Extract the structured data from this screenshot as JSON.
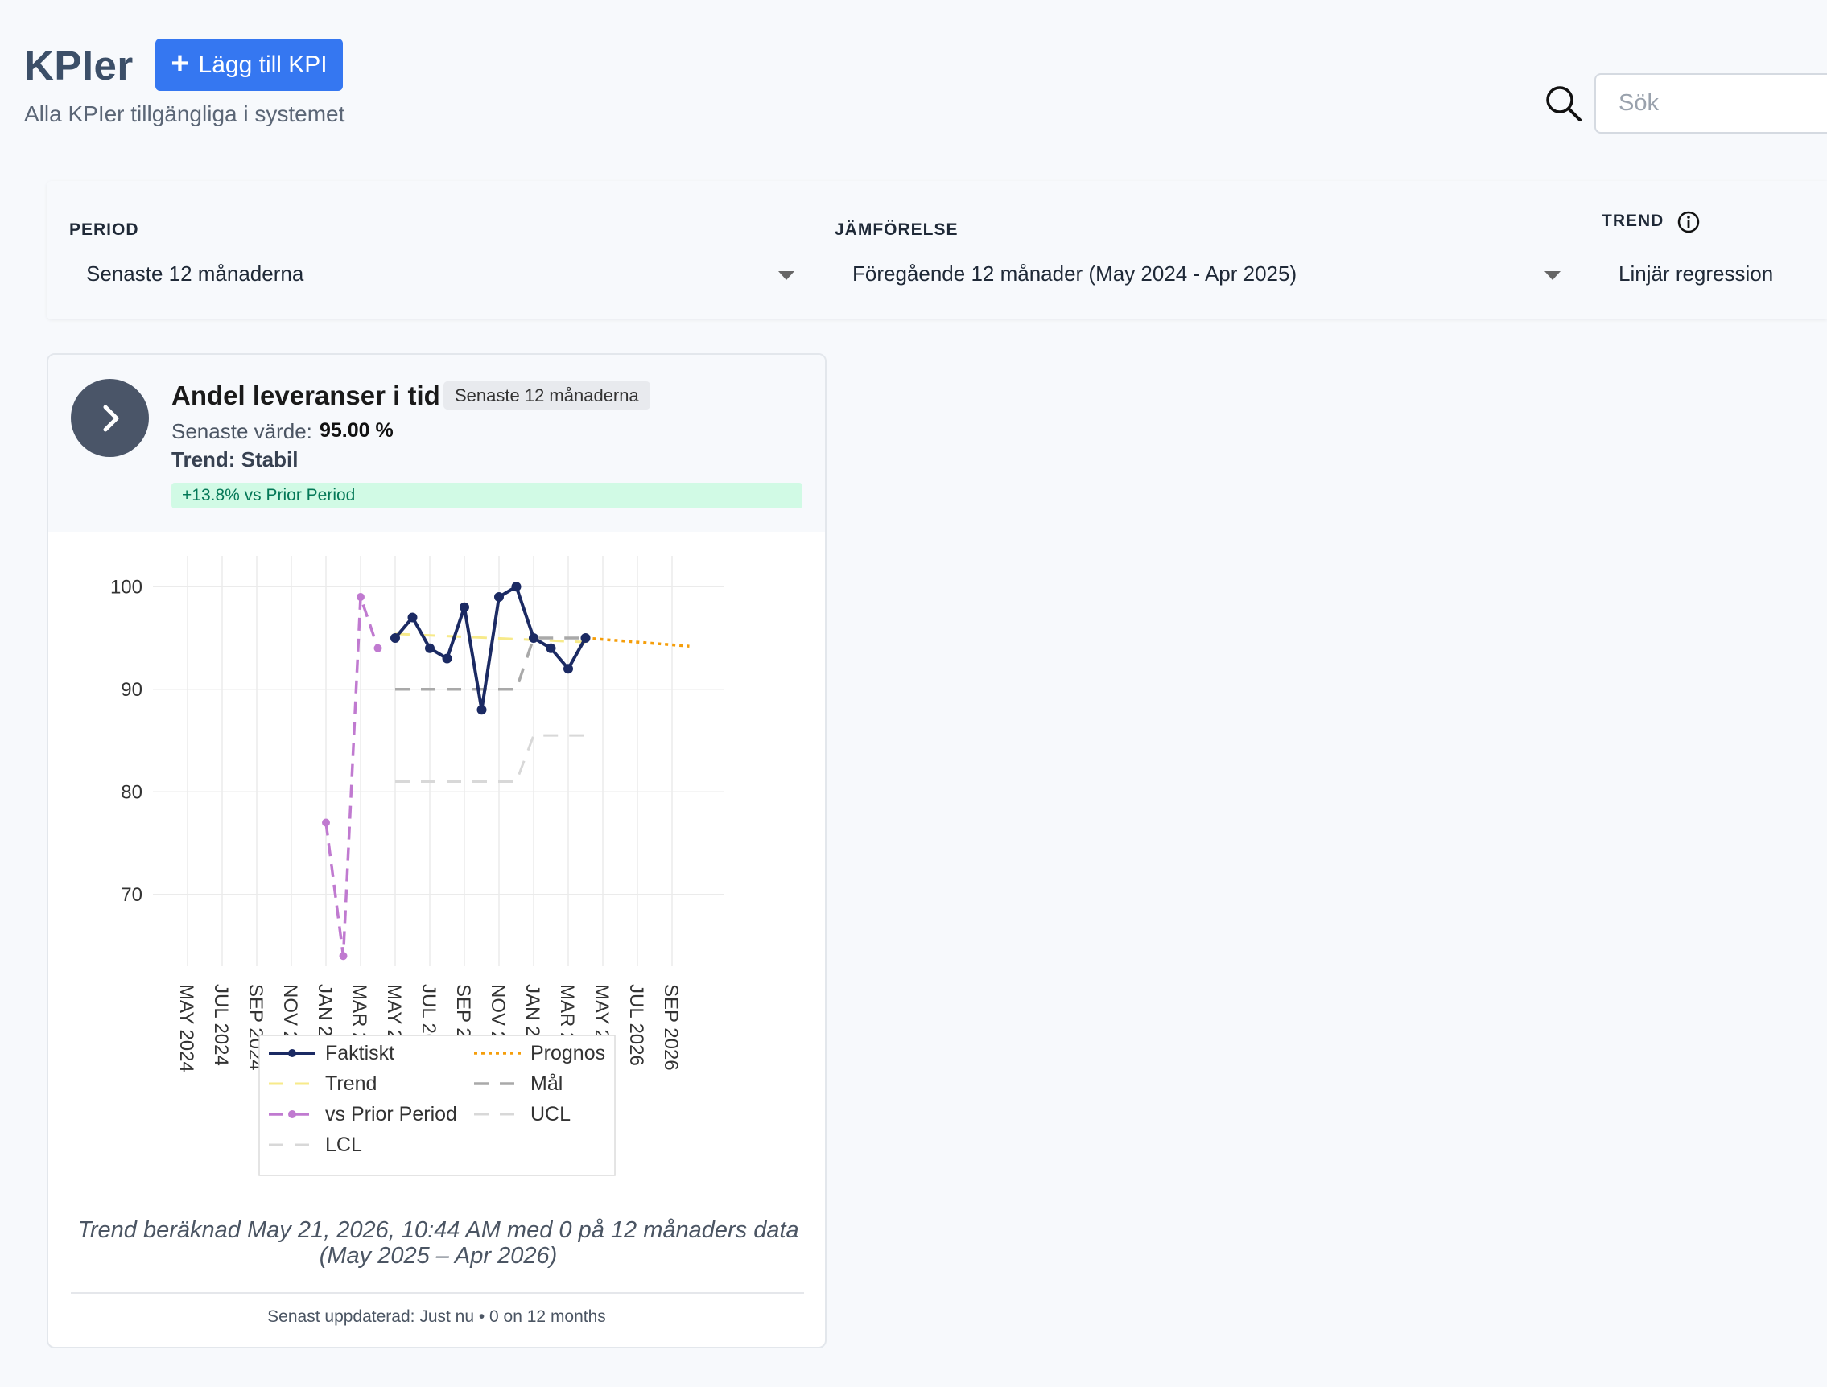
{
  "header": {
    "title": "KPIer",
    "add_button_label": "Lägg till KPI",
    "subtitle": "Alla KPIer tillgängliga i systemet",
    "search_placeholder": "Sök"
  },
  "filters": {
    "period": {
      "label": "PERIOD",
      "value": "Senaste 12 månaderna"
    },
    "comparison": {
      "label": "JÄMFÖRELSE",
      "value": "Föregående 12 månader (May 2024 - Apr 2025)"
    },
    "trend": {
      "label": "TREND",
      "value": "Linjär regression"
    }
  },
  "card": {
    "title": "Andel leveranser i tid",
    "badge": "Senaste 12 månaderna",
    "latest_label": "Senaste värde:",
    "latest_value": "95.00 %",
    "trend": "Trend: Stabil",
    "change": "+13.8% vs Prior Period",
    "trend_note": "Trend beräknad May 21, 2026, 10:44 AM med 0 på 12 månaders data (May 2025 – Apr 2026)",
    "footer": "Senast uppdaterad: Just nu • 0 on 12 months"
  },
  "colors": {
    "accent": "#3577f1",
    "faktiskt": "#1b2a63",
    "trend": "#f7ea8a",
    "prior": "#c07ad0",
    "target": "#a9a9a9",
    "limits": "#d8d8d8",
    "forecast": "#f59e0b",
    "change_bg": "#d1fae5",
    "change_text": "#047857"
  },
  "chart_data": {
    "type": "line",
    "x_ticks": [
      "MAY 2024",
      "JUL 2024",
      "SEP 2024",
      "NOV 2024",
      "JAN 2025",
      "MAR 2025",
      "MAY 2025",
      "JUL 2025",
      "SEP 2025",
      "NOV 2025",
      "JAN 2026",
      "MAR 2026",
      "MAY 2026",
      "JUL 2026",
      "SEP 2026"
    ],
    "ylim": [
      63,
      103
    ],
    "y_ticks": [
      70,
      80,
      90,
      100
    ],
    "grid": true,
    "legend_placement": "bottom",
    "series": [
      {
        "name": "Faktiskt",
        "style": "solid-markers",
        "x": [
          "2025-05",
          "2025-06",
          "2025-07",
          "2025-08",
          "2025-09",
          "2025-10",
          "2025-11",
          "2025-12",
          "2026-01",
          "2026-02",
          "2026-03",
          "2026-04"
        ],
        "y": [
          95,
          97,
          94,
          93,
          98,
          88,
          99,
          100,
          95,
          94,
          92,
          95
        ]
      },
      {
        "name": "Trend",
        "style": "dashed",
        "x": [
          "2025-05",
          "2026-04"
        ],
        "y": [
          95.4,
          94.6
        ]
      },
      {
        "name": "vs Prior Period",
        "style": "dashed-markers",
        "x": [
          "2025-01",
          "2025-02",
          "2025-03",
          "2025-04"
        ],
        "y": [
          77,
          64,
          99,
          94
        ]
      },
      {
        "name": "LCL",
        "style": "dashed",
        "x": [
          "2025-05",
          "2025-12",
          "2026-01",
          "2026-04"
        ],
        "y": [
          81,
          81,
          85.5,
          85.5
        ]
      },
      {
        "name": "Prognos",
        "style": "dotted",
        "x": [
          "2026-04",
          "2026-10"
        ],
        "y": [
          95,
          94.2
        ]
      },
      {
        "name": "Mål",
        "style": "dashed",
        "x": [
          "2025-05",
          "2025-12",
          "2026-01",
          "2026-04"
        ],
        "y": [
          90,
          90,
          95,
          95
        ]
      },
      {
        "name": "UCL",
        "style": "dashed",
        "x": [],
        "y": []
      }
    ]
  }
}
